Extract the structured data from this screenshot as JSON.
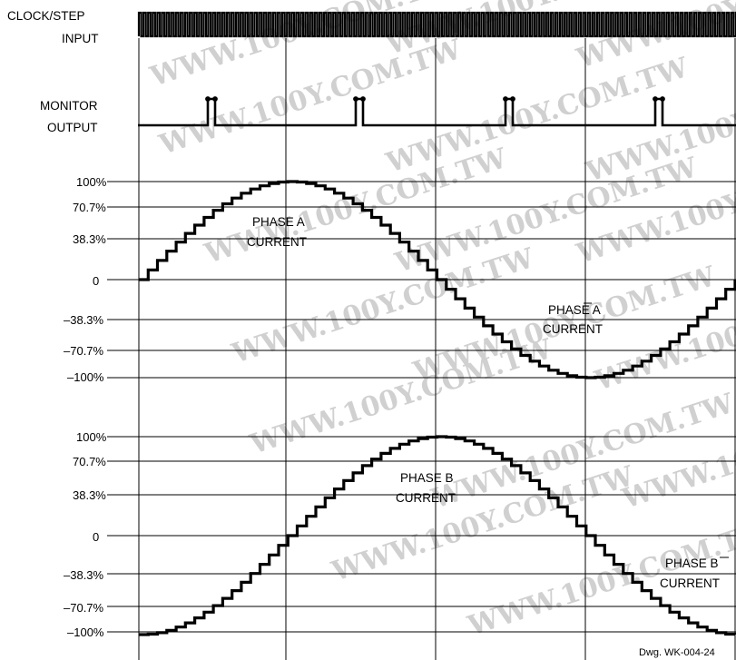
{
  "signals": {
    "clock_label_line1": "CLOCK/STEP",
    "clock_label_line2": "INPUT",
    "monitor_label_line1": "MONITOR",
    "monitor_label_line2": "OUTPUT"
  },
  "phase_a_axis": {
    "ticks": [
      "100%",
      "70.7%",
      "38.3%",
      "0",
      "–38.3%",
      "–70.7%",
      "–100%"
    ]
  },
  "phase_b_axis": {
    "ticks": [
      "100%",
      "70.7%",
      "38.3%",
      "0",
      "–38.3%",
      "–70.7%",
      "–100%"
    ]
  },
  "annotations": {
    "phase_a_line1": "PHASE A",
    "phase_a_line2": "CURRENT",
    "phase_a_bar_line1": "PHASE A",
    "phase_a_bar_line2": "CURRENT",
    "phase_b_line1": "PHASE B",
    "phase_b_line2": "CURRENT",
    "phase_b_bar_line1": "PHASE B",
    "phase_b_bar_line2": "CURRENT"
  },
  "watermark": "WWW.100Y.COM.TW",
  "drawing_number": "Dwg. WK-004-24"
}
